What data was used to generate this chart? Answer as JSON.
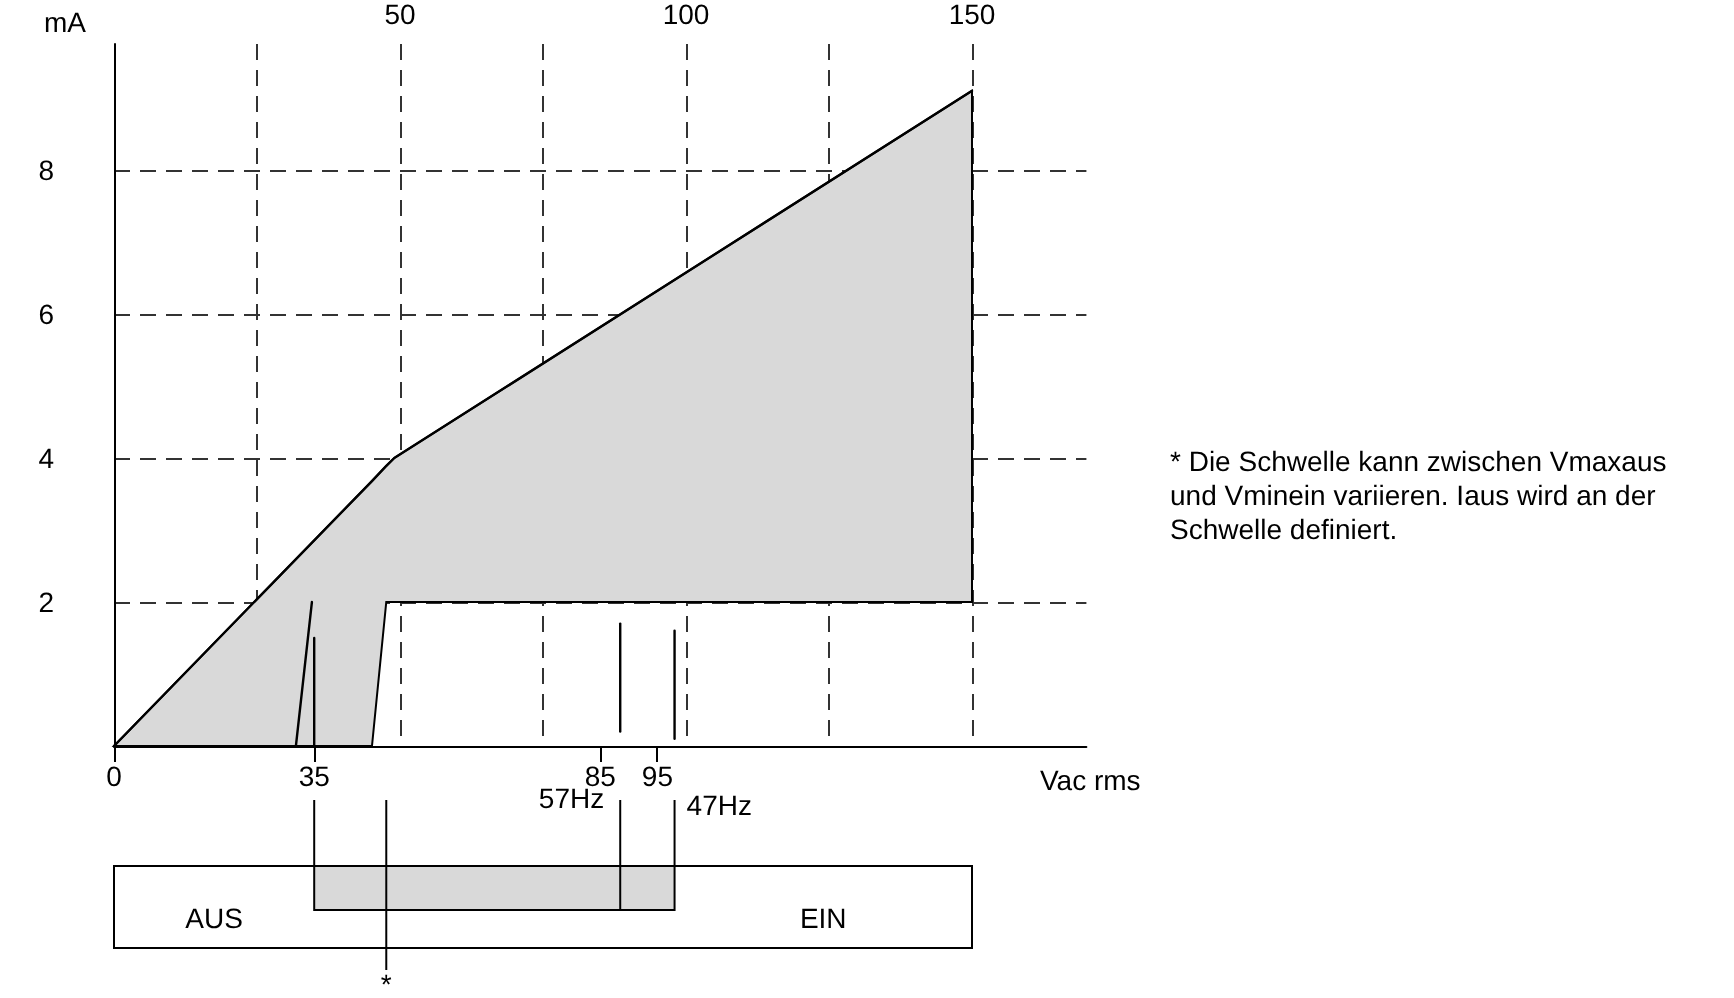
{
  "chart_data": {
    "type": "line",
    "xlabel": "Vac rms",
    "ylabel": "mA",
    "xlim": [
      0,
      170
    ],
    "xticks": [
      0,
      35,
      85,
      95
    ],
    "x2lim": [
      0,
      170
    ],
    "x2ticks": [
      {
        "value": 25,
        "label": null
      },
      50,
      {
        "value": 75,
        "label": null
      },
      100,
      {
        "value": 125,
        "label": null
      },
      150
    ],
    "ylim": [
      0,
      9.75
    ],
    "yticks": [
      2,
      4,
      6,
      8
    ],
    "grid": true,
    "marker": "none",
    "line_style": "solid",
    "series": [
      {
        "color": "#000000",
        "x": [
          0,
          45.1,
          47.6,
          49,
          150
        ],
        "values": [
          0,
          3.68,
          3.89,
          4,
          9.1
        ],
        "lower": [
          0,
          0,
          2,
          2,
          2
        ],
        "upper": [
          0,
          3.68,
          3.89,
          4,
          9.1
        ]
      },
      {
        "color": "#000000",
        "x": [
          31.8,
          34.6
        ],
        "values": [
          0,
          2
        ]
      },
      {
        "color": "#000000",
        "x": [
          35,
          35
        ],
        "values": [
          0,
          1.5
        ]
      },
      {
        "color": "#000000",
        "x": [
          88.5,
          88.5
        ],
        "values": [
          0.2,
          1.7
        ]
      },
      {
        "color": "#000000",
        "x": [
          98,
          98
        ],
        "values": [
          0.1,
          1.6
        ]
      }
    ],
    "annotations": [
      "* Die Schwelle kann zwischen Vmaxaus und Vminein variieren. Iaus wird an der Schwelle definiert.",
      {
        "text": "57Hz",
        "x": 88.5,
        "y": 0.2
      },
      {
        "text": "47Hz",
        "x": 98,
        "y": 0.1
      },
      "AUS",
      "EIN",
      "*"
    ]
  }
}
